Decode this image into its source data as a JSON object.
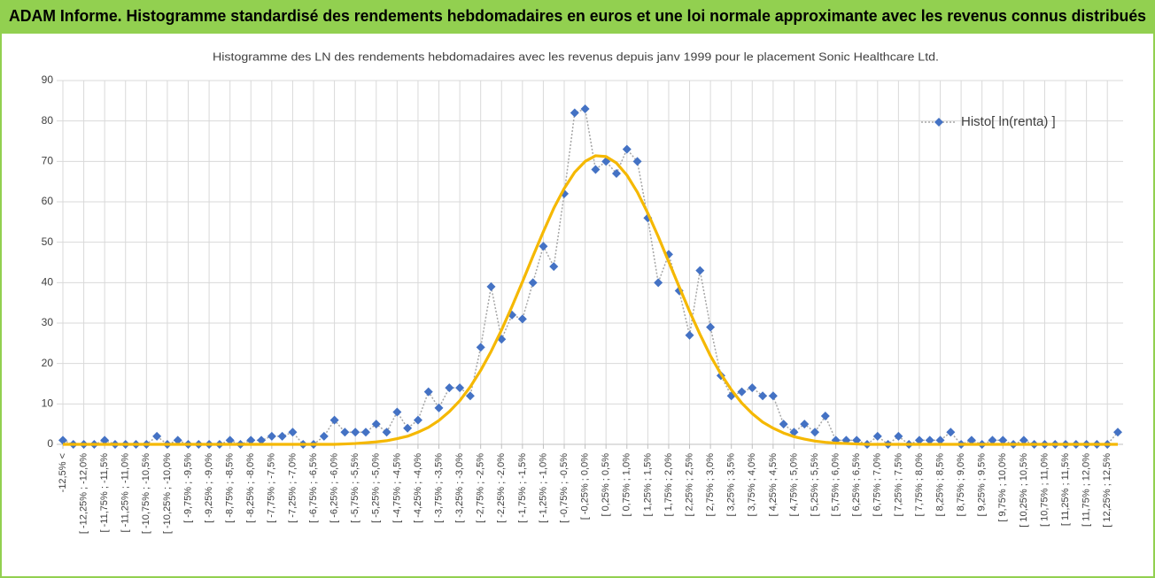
{
  "title": "ADAM Informe. Histogramme standardisé des rendements hebdomadaires en euros et une loi normale approximante avec les revenus connus distribués",
  "chart_data": {
    "type": "line",
    "subtitle": "Histogramme des LN des rendements hebdomadaires avec les revenus depuis janv 1999 pour le placement Sonic Healthcare  Ltd.",
    "categories": [
      "-12,5% <",
      null,
      "[ -12,25% ; -12,0%",
      null,
      "[ -11,75% ; -11,5%",
      null,
      "[ -11,25% ; -11,0%",
      null,
      "[ -10,75% ; -10,5%",
      null,
      "[ -10,25% ; -10,0%",
      null,
      "[ -9,75% ; -9,5%",
      null,
      "[ -9,25% ; -9,0%",
      null,
      "[ -8,75% ; -8,5%",
      null,
      "[ -8,25% ; -8,0%",
      null,
      "[ -7,75% ; -7,5%",
      null,
      "[ -7,25% ; -7,0%",
      null,
      "[ -6,75% ; -6,5%",
      null,
      "[ -6,25% ; -6,0%",
      null,
      "[ -5,75% ; -5,5%",
      null,
      "[ -5,25% ; -5,0%",
      null,
      "[ -4,75% ; -4,5%",
      null,
      "[ -4,25% ; -4,0%",
      null,
      "[ -3,75% ; -3,5%",
      null,
      "[ -3,25% ; -3,0%",
      null,
      "[ -2,75% ; -2,5%",
      null,
      "[ -2,25% ; -2,0%",
      null,
      "[ -1,75% ; -1,5%",
      null,
      "[ -1,25% ; -1,0%",
      null,
      "[ -0,75% ; -0,5%",
      null,
      "[ -0,25% ; 0,0%",
      null,
      "[ 0,25% ; 0,5%",
      null,
      "[ 0,75% ; 1,0%",
      null,
      "[ 1,25% ; 1,5%",
      null,
      "[ 1,75% ; 2,0%",
      null,
      "[ 2,25% ; 2,5%",
      null,
      "[ 2,75% ; 3,0%",
      null,
      "[ 3,25% ; 3,5%",
      null,
      "[ 3,75% ; 4,0%",
      null,
      "[ 4,25% ; 4,5%",
      null,
      "[ 4,75% ; 5,0%",
      null,
      "[ 5,25% ; 5,5%",
      null,
      "[ 5,75% ; 6,0%",
      null,
      "[ 6,25% ; 6,5%",
      null,
      "[ 6,75% ; 7,0%",
      null,
      "[ 7,25% ; 7,5%",
      null,
      "[ 7,75% ; 8,0%",
      null,
      "[ 8,25% ; 8,5%",
      null,
      "[ 8,75% ; 9,0%",
      null,
      "[ 9,25% ; 9,5%",
      null,
      "[ 9,75% ; 10,0%",
      null,
      "[ 10,25% ; 10,5%",
      null,
      "[ 10,75% ; 11,0%",
      null,
      "[ 11,25% ; 11,5%",
      null,
      "[ 11,75% ; 12,0%",
      null,
      "[ 12,25% ; 12,5%",
      null
    ],
    "series": [
      {
        "name": "Histo[ ln(renta) ]",
        "color": "#4472c4",
        "line_color": "#a6a6a6",
        "values": [
          1,
          0,
          0,
          0,
          1,
          0,
          0,
          0,
          0,
          2,
          0,
          1,
          0,
          0,
          0,
          0,
          1,
          0,
          1,
          1,
          2,
          2,
          3,
          0,
          0,
          2,
          6,
          3,
          3,
          3,
          5,
          3,
          8,
          4,
          6,
          13,
          9,
          14,
          14,
          12,
          24,
          39,
          26,
          32,
          31,
          40,
          49,
          44,
          62,
          82,
          83,
          68,
          70,
          67,
          73,
          70,
          56,
          40,
          47,
          38,
          27,
          43,
          29,
          17,
          12,
          13,
          14,
          12,
          12,
          5,
          3,
          5,
          3,
          7,
          1,
          1,
          1,
          0,
          2,
          0,
          2,
          0,
          1,
          1,
          1,
          3,
          0,
          1,
          0,
          1,
          1,
          0,
          1,
          0,
          0,
          0,
          0,
          0,
          0,
          0,
          0,
          3
        ]
      },
      {
        "color": "#f5b800",
        "values": [
          0,
          0,
          0,
          0,
          0,
          0,
          0,
          0,
          0,
          0,
          0,
          0,
          0,
          0,
          0,
          0,
          0,
          0,
          0,
          0,
          0,
          0,
          0,
          0,
          0,
          0,
          0,
          0.1,
          0.2,
          0.4,
          0.6,
          0.9,
          1.4,
          2.0,
          3.0,
          4.2,
          5.9,
          8.1,
          10.8,
          14.2,
          18.3,
          23.0,
          28.3,
          34.1,
          40.2,
          46.5,
          52.6,
          58.4,
          63.3,
          67.3,
          70.0,
          71.4,
          71.2,
          69.6,
          66.6,
          62.4,
          57.2,
          51.4,
          45.2,
          39.0,
          32.9,
          27.2,
          21.9,
          17.4,
          13.5,
          10.2,
          7.6,
          5.5,
          4.0,
          2.8,
          1.9,
          1.3,
          0.8,
          0.5,
          0.3,
          0.2,
          0.1,
          0,
          0,
          0,
          0,
          0,
          0,
          0,
          0,
          0,
          0,
          0,
          0,
          0,
          0,
          0,
          0,
          0,
          0,
          0,
          0,
          0,
          0,
          0,
          0,
          0
        ]
      }
    ],
    "ylim": [
      0,
      90
    ],
    "yticks": [
      0,
      10,
      20,
      30,
      40,
      50,
      60,
      70,
      80,
      90
    ],
    "grid": true,
    "legend": "top-right"
  }
}
